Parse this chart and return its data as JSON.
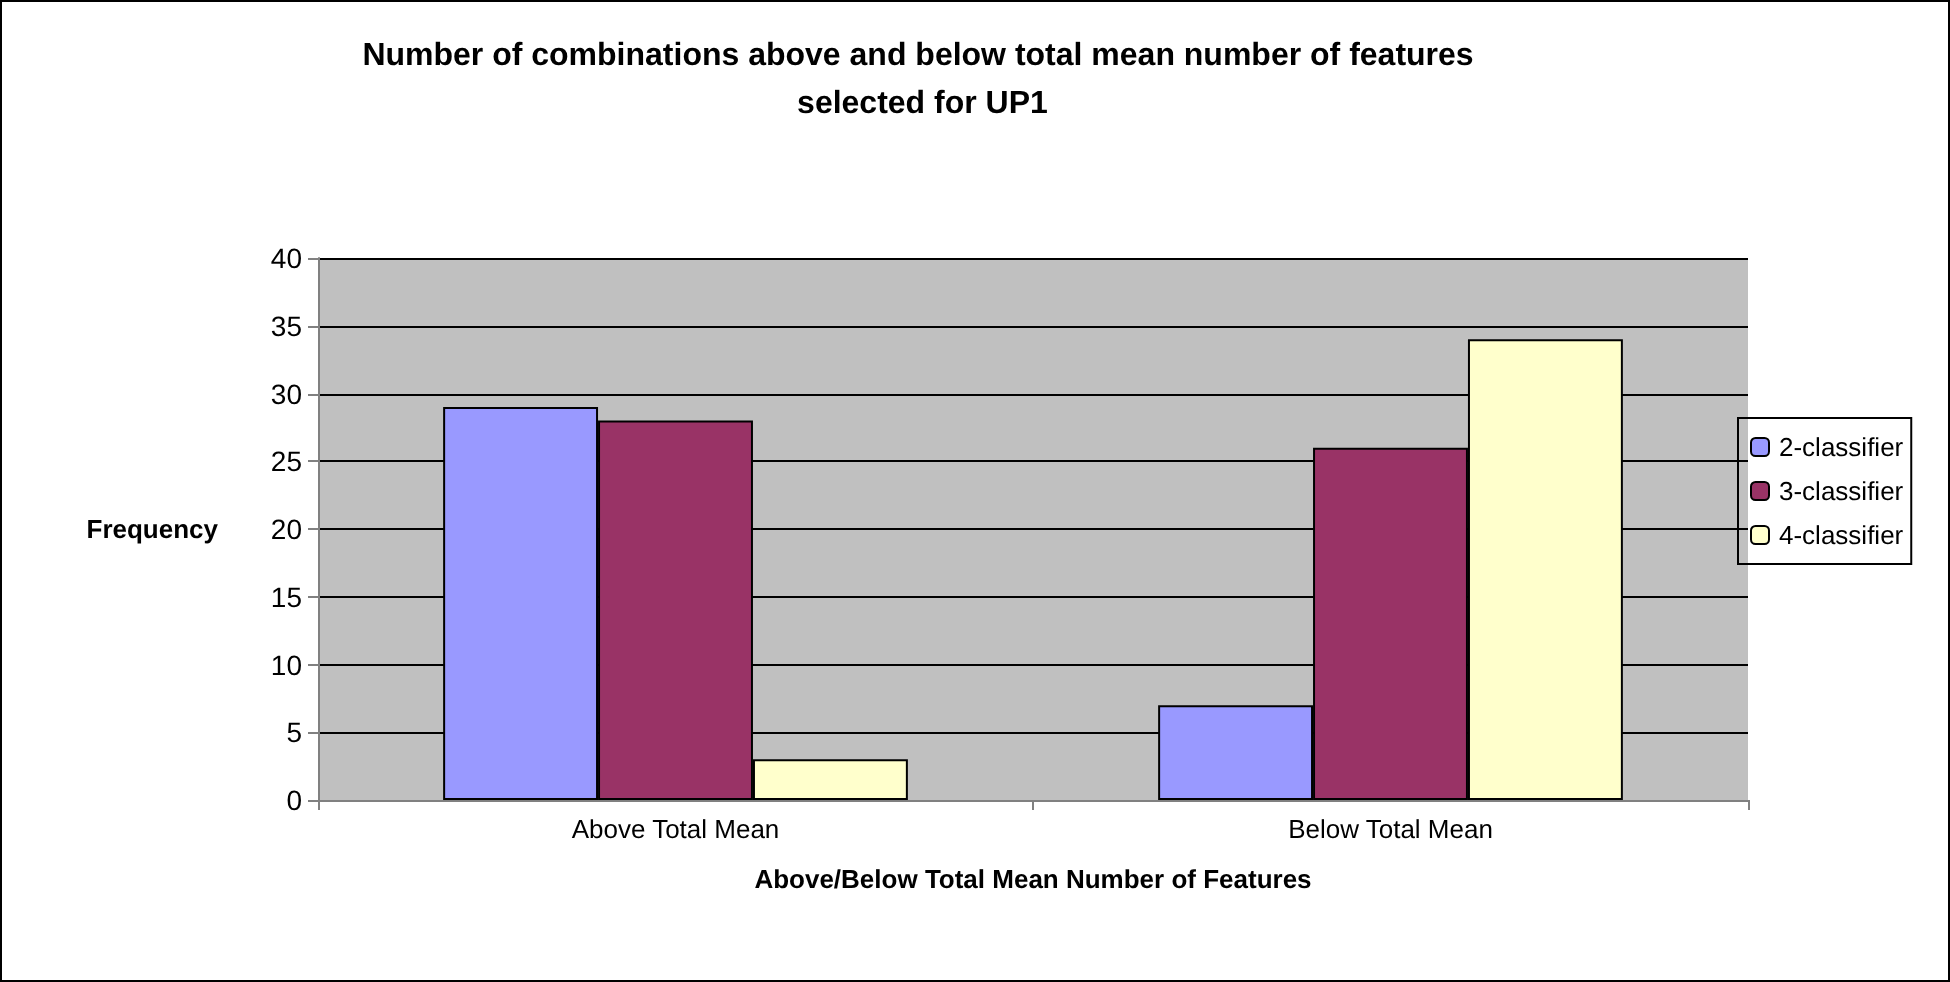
{
  "chart_data": {
    "type": "bar",
    "title": "Number of combinations above and below total mean number of features selected for UP1",
    "xlabel": "Above/Below Total Mean Number of Features",
    "ylabel": "Frequency",
    "categories": [
      "Above Total Mean",
      "Below Total Mean"
    ],
    "series": [
      {
        "name": "2-classifier",
        "color": "#9999ff",
        "values": [
          29,
          7
        ]
      },
      {
        "name": "3-classifier",
        "color": "#993366",
        "values": [
          28,
          26
        ]
      },
      {
        "name": "4-classifier",
        "color": "#ffffcc",
        "values": [
          3,
          34
        ]
      }
    ],
    "ylim": [
      0,
      40
    ],
    "yticks": [
      0,
      5,
      10,
      15,
      20,
      25,
      30,
      35,
      40
    ],
    "grid": "y",
    "legend": "right"
  }
}
